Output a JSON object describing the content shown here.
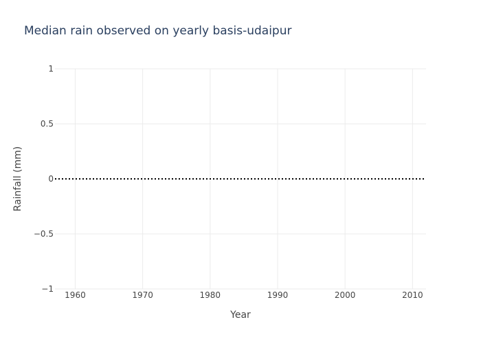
{
  "chart_data": {
    "type": "line",
    "title": "Median rain observed on yearly basis-udaipur",
    "xlabel": "Year",
    "ylabel": "Rainfall (mm)",
    "xlim": [
      1957,
      2012
    ],
    "ylim": [
      -1,
      1
    ],
    "x_ticks": [
      1960,
      1970,
      1980,
      1990,
      2000,
      2010
    ],
    "y_ticks": [
      1,
      0.5,
      0,
      -0.5,
      -1
    ],
    "y_tick_labels": [
      "1",
      "0.5",
      "0",
      "−0.5",
      "−1"
    ],
    "grid": true,
    "series": [
      {
        "line_style": "dotted",
        "color": "#000000",
        "x": [
          1957,
          2012
        ],
        "values": [
          0,
          0
        ]
      }
    ]
  }
}
